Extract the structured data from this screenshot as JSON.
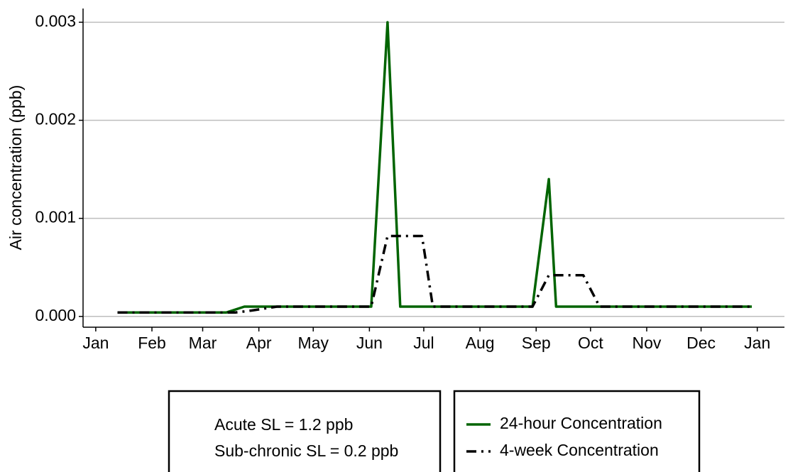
{
  "chart_data": {
    "type": "line",
    "y_label": "Air  concentration  (ppb)",
    "xlim": [
      -7,
      380
    ],
    "ylim": [
      -0.00011,
      0.00314
    ],
    "xticks": [
      {
        "value": 0,
        "label": "Jan"
      },
      {
        "value": 31,
        "label": "Feb"
      },
      {
        "value": 59,
        "label": "Mar"
      },
      {
        "value": 90,
        "label": "Apr"
      },
      {
        "value": 120,
        "label": "May"
      },
      {
        "value": 151,
        "label": "Jun"
      },
      {
        "value": 181,
        "label": "Jul"
      },
      {
        "value": 212,
        "label": "Aug"
      },
      {
        "value": 243,
        "label": "Sep"
      },
      {
        "value": 273,
        "label": "Oct"
      },
      {
        "value": 304,
        "label": "Nov"
      },
      {
        "value": 334,
        "label": "Dec"
      },
      {
        "value": 365,
        "label": "Jan"
      }
    ],
    "yticks": [
      {
        "value": 0,
        "label": "0.000"
      },
      {
        "value": 0.001,
        "label": "0.001"
      },
      {
        "value": 0.002,
        "label": "0.002"
      },
      {
        "value": 0.003,
        "label": "0.003"
      }
    ],
    "grid": true,
    "annotations": [
      "Acute SL = 1.2 ppb",
      "Sub-chronic SL = 0.2 ppb"
    ],
    "series": [
      {
        "name": "24-hour Concentration",
        "color": "#006400",
        "dash": "solid",
        "x": [
          12,
          72,
          82,
          152,
          161,
          168,
          241,
          250,
          254,
          362
        ],
        "values": [
          4e-05,
          4e-05,
          0.0001,
          0.0001,
          0.003,
          0.0001,
          0.0001,
          0.0014,
          0.0001,
          0.0001
        ]
      },
      {
        "name": "4-week Concentration",
        "color": "#000000",
        "dash": "dashdot",
        "x": [
          12,
          77,
          86,
          100,
          152,
          161,
          180,
          186,
          241,
          250,
          269,
          278,
          362
        ],
        "values": [
          4e-05,
          4e-05,
          6e-05,
          0.0001,
          0.0001,
          0.00082,
          0.00082,
          0.0001,
          0.0001,
          0.00042,
          0.00042,
          0.0001,
          0.0001
        ]
      }
    ]
  }
}
